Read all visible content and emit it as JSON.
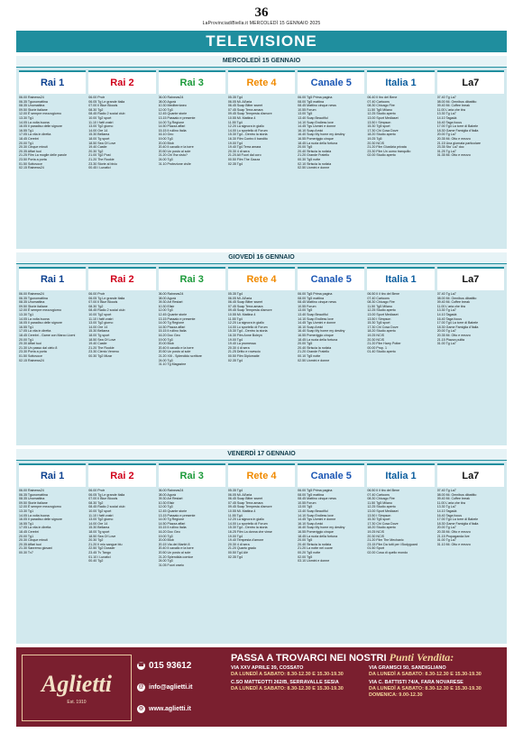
{
  "page_number": "36",
  "paper_line": "LaProvinciadiBiella.it MERCOLEDÌ 15 GENNAIO 2025",
  "section_title": "TELEVISIONE",
  "channels": [
    "Rai 1",
    "Rai 2",
    "Rai 3",
    "Rete 4",
    "Canale 5",
    "Italia 1",
    "La7"
  ],
  "days": [
    {
      "label": "MERCOLEDÌ 15 GENNAIO",
      "columns": [
        [
          "06.00 Rainews24",
          "06.35 Tgunomattina",
          "08.35 Unomattina",
          "09.50 Storie italiane",
          "12.00 È sempre mezzogiorno",
          "13.30 Tg1",
          "14.05 La volta buona",
          "16.05 Il paradiso delle signore",
          "16.55 Tg1",
          "17.05 La vita in diretta",
          "18.45 Cerebri",
          "20.00 Tg1",
          "20.30 Cinque minuti",
          "20.35 Affari tuoi",
          "21.25 Film La moglie delle parole",
          "23.50 Porta a porta",
          "01.50 Sottovoce",
          "02.15 Rainews24"
        ],
        [
          "06.00 Protr",
          "06.05 Tg Le grande Italia",
          "07.00 Il Blue Bloods",
          "08.30 Tg2",
          "08.45 Radio 2 social club",
          "10.00 Tg2 sport",
          "11.10 I fatti vostri",
          "13.00 Tg2 giorno",
          "14.00 Ore 14",
          "15.30 Bellama",
          "18.00 Tg sport",
          "18.50 Sea Of Love",
          "19.40 Castle",
          "20.30 Tg2",
          "21.00 Tg2 Post",
          "21.20 The Rookie",
          "23.30 Storie al bivio",
          "00.45 I Lunatici"
        ],
        [
          "06.00 Rainews24",
          "08.00 Agorà",
          "10.30 Mediterràneo",
          "12.00 Tg3",
          "12.45 Quante storie",
          "13.15 Passato e presente",
          "14.00 Tg Regione",
          "14.50 Piazza affari",
          "15.15 Il rullino Italia",
          "16.10 Geo",
          "19.00 Tg3",
          "20.00 Blob",
          "20.40 Il cavallo e la torre",
          "20.50 Un posto al sole",
          "21.20 Chi l'ha visto?",
          "24.00 Tg3",
          "01.10 Protezione civile"
        ],
        [
          "05.35 Tg4",
          "06.05 Mi. All'aria",
          "06.45 Soap Bitter sweet",
          "07.45 Soap Terra amara",
          "09.45 Soap Tempesta d'amore",
          "10.55 Mi. Mattina 4",
          "11.55 Tg4",
          "12.20 La signora in giallo",
          "14.00 Lo sportello di Forum",
          "15.30 Tg4 - Dentro la storia",
          "16.30 Film Contro il bandito",
          "19.00 Tg4",
          "19.40 Tg4 Terra amara",
          "20.30 4 di sera",
          "21.20 All Fuori dal coro",
          "00.50 Film The Gazza",
          "02.35 Tg4"
        ],
        [
          "06.00 Tg5 Prima pagina",
          "08.00 Tg5 mattina",
          "08.45 Mattino cinque news",
          "10.55 Forum",
          "13.00 Tg5",
          "13.40 Soap Beautiful",
          "14.10 Soap Endless love",
          "14.45 Tgs Uomini e donne",
          "16.10 Soap Amici",
          "16.40 Soap My home my destiny",
          "16.55 Pomeriggio cinque",
          "18.45 La ruota della fortuna",
          "20.00 Tg5",
          "20.40 Striscia la notizia",
          "21.20 Grande Fratello",
          "00.30 Tg5 notte",
          "02.10 Striscia la notizia",
          "02.50 Uomini e donne"
        ],
        [
          "06.40 Il tiro del Bene",
          "07.40 Cartoons",
          "08.30 Chicago Fire",
          "11.50 Tg5 Milano",
          "12.25 Studio aperto",
          "13.00 Sport Mediaset",
          "13.50 I Simpson",
          "15.30 Tg5 sport",
          "17.30 Chi Cosa Dove",
          "18.20 Studio aperto",
          "19.25 Tg5",
          "20.30 NCIS",
          "21.20 Film Giustizia privata",
          "23.30 Film Un uomo tranquillo",
          "02.00 Studio aperto"
        ],
        [
          "07.40 Tg La7",
          "08.00 Mi. Omnibus dibattito",
          "09.40 Mi. Coffee break",
          "11.00 L'aria che tira",
          "13.30 Tg La7",
          "14.10 Tagadà",
          "16.40 Taga focus",
          "17.00 Tg4 La torre di Babele",
          "18.30 Game Famiglia d'Italia",
          "20.00 Tg La7",
          "20.35 Mi. Otto e mezzo",
          "21.15 Una giornata particolare",
          "23.35 Sto' La7 doc",
          "01.25 Tg La7",
          "01.35 Mi. Otto e mezzo"
        ]
      ]
    },
    {
      "label": "GIOVEDÌ 16 GENNAIO",
      "columns": [
        [
          "06.00 Rainews24",
          "06.35 Tgunomattina",
          "08.35 Unomattina",
          "09.50 Storie italiane",
          "12.00 È sempre mezzogiorno",
          "13.30 Tg1",
          "14.05 La volta buona",
          "16.05 Il paradiso delle signore",
          "16.55 Tg1",
          "17.05 La vita in diretta",
          "18.45 Cerebri - Game con Marco Liorni",
          "20.00 Tg1",
          "20.30 Affari tuoi",
          "21.30 Un passo dal cielo 8",
          "23.30 Porta a porta",
          "01.50 Sottovoce",
          "02.15 Rainews24"
        ],
        [
          "06.00 Protr",
          "06.05 Tg Le grande Italia",
          "07.00 Il Blue Bloods",
          "08.30 Tg2",
          "08.45 Radio 2 social club",
          "10.00 Tg2 sport",
          "11.10 I fatti vostri",
          "13.00 Tg2 giorno",
          "14.00 Ore 14",
          "15.30 Bellama",
          "18.00 Tg sport",
          "18.50 Sea Of Love",
          "19.40 Castle",
          "21.20 The Rookie",
          "23.30 Ciento Veneno",
          "00.30 Tg2 Mizar"
        ],
        [
          "06.00 Rainews24",
          "08.00 Agorà",
          "09.30 Art Restart",
          "10.30 Elisir",
          "12.00 Tg3",
          "12.45 Quante storie",
          "13.15 Passato e presente",
          "14.00 Tg Regione",
          "14.50 Piazza affari",
          "15.15 Il rullino Italia",
          "16.20 Doc Geo",
          "19.00 Tg3",
          "20.00 Blob",
          "20.40 Il cavallo e la torre",
          "20.50 Un posto al sole",
          "21.20 XIII - Splendido scrittore",
          "24.00 Tg3",
          "01.10 Tg Magazine"
        ],
        [
          "05.35 Tg4",
          "06.05 Mi. All'aria",
          "06.45 Soap Bitter sweet",
          "07.45 Soap Terra amara",
          "09.45 Soap Tempesta d'amore",
          "10.55 Mi. Mattina 4",
          "11.55 Tg4",
          "12.20 La signora in giallo",
          "14.00 Lo sportello di Forum",
          "15.30 Tg4 - Dentro la storia",
          "16.30 Film Anne Boleyn",
          "19.00 Tg4",
          "19.40 La promessa",
          "20.30 4 di sera",
          "21.25 Dritto e rovescio",
          "00.50 Film Diplomatie",
          "02.35 Tg4"
        ],
        [
          "06.00 Tg5 Prima pagina",
          "08.00 Tg5 mattina",
          "08.45 Mattino cinque news",
          "10.55 Forum",
          "13.00 Tg5",
          "13.40 Soap Beautiful",
          "14.10 Soap Endless love",
          "14.45 Tgs Uomini e donne",
          "16.10 Soap Amici",
          "16.40 Soap My home my destiny",
          "16.55 Pomeriggio cinque",
          "18.45 La ruota della fortuna",
          "20.00 Tg5",
          "20.40 Striscia la notizia",
          "21.20 Grande Fratello",
          "00.10 Tg5 notte",
          "02.50 Uomini e donne"
        ],
        [
          "06.50 Il il tiro del Bene",
          "07.40 Cartoons",
          "08.30 Chicago Fire",
          "11.50 Tg5 Milano",
          "12.25 Studio aperto",
          "13.00 Sport Mediaset",
          "13.50 I Simpson",
          "15.30 Tg5 sport",
          "17.30 Chi Cosa Dove",
          "18.20 Studio aperto",
          "19.25 NCIS",
          "20.30 NCIS",
          "21.20 Film Harry Potter",
          "00.00 Prop. 1",
          "01.40 Studio aperto"
        ],
        [
          "07.40 Tg La7",
          "08.00 Mi. Omnibus dibattito",
          "09.40 Mi. Coffee break",
          "11.00 L'aria che tira",
          "13.30 Tg La7",
          "14.10 Tagadà",
          "16.40 Taga focus",
          "17.00 Tg4 La torre di Babele",
          "18.30 Game Famiglia d'Italia",
          "20.00 Tg La7",
          "20.35 Mi. Otto e mezzo",
          "21.15 Piazza pulita",
          "01.00 Tg La7"
        ]
      ]
    },
    {
      "label": "VENERDÌ 17 GENNAIO",
      "columns": [
        [
          "06.00 Rainews24",
          "06.35 Tgunomattina",
          "08.35 Unomattina",
          "09.50 Storie italiane",
          "12.00 È sempre mezzogiorno",
          "13.30 Tg1",
          "14.05 La volta buona",
          "16.05 Il paradiso delle signore",
          "16.55 Tg1",
          "17.05 La vita in diretta",
          "18.45 Cerebri",
          "20.00 Tg1",
          "20.30 Cinque minuti",
          "20.35 Affari tuoi",
          "21.30 Sanremo giovani",
          "00.30 Tv7"
        ],
        [
          "06.00 Protr",
          "06.05 Tg Le grande Italia",
          "07.00 Il Blue Bloods",
          "08.30 Tg2",
          "08.45 Radio 2 social club",
          "10.00 Tg2 sport",
          "11.10 I fatti vostri",
          "13.00 Tg2 giorno",
          "14.00 Ore 14",
          "15.30 Bellama",
          "18.00 Tg sport",
          "18.50 Sea Of Love",
          "20.30 Tg2",
          "21.20 Il mio sangue blu",
          "22.50 Tg2 Dossier",
          "23.45 Tv Tango",
          "01.10 I Lunatici",
          "00.40 Tg2"
        ],
        [
          "06.00 Rainews24",
          "08.00 Agorà",
          "09.30 Art Restart",
          "10.30 Elisir",
          "12.00 Tg3",
          "12.45 Quante storie",
          "13.15 Passato e presente",
          "14.00 Tg Regione",
          "14.50 Piazza affari",
          "15.15 Il rullino Italia",
          "16.20 Doc Geo",
          "19.00 Tg3",
          "20.00 Blob",
          "20.15 Via dei Martiri 8",
          "20.40 Il cavallo e la torre",
          "20.50 Un posto al sole",
          "21.20 Splendida cornice",
          "24.00 Tg3",
          "01.05 Fuori orario"
        ],
        [
          "05.35 Tg4",
          "06.05 Mi. All'aria",
          "06.45 Soap Bitter sweet",
          "07.45 Soap Terra amara",
          "09.45 Soap Tempesta d'amore",
          "10.55 Mi. Mattina 4",
          "11.55 Tg4",
          "12.20 La signora in giallo",
          "14.00 Lo sportello di Forum",
          "15.30 Tg4 - Dentro la storia",
          "16.25 Film La donna che vinse",
          "19.00 Tg4",
          "19.40 Tempesta d'amore",
          "20.30 4 di sera",
          "21.20 Quarto grado",
          "00.50 Tg4 Alè",
          "02.35 Tg4"
        ],
        [
          "06.00 Tg5 Prima pagina",
          "08.00 Tg5 mattina",
          "08.45 Mattino cinque news",
          "10.55 Forum",
          "13.00 Tg5",
          "13.40 Soap Beautiful",
          "14.10 Soap Endless love",
          "14.45 Tgs Uomini e donne",
          "16.10 Soap Amici",
          "16.40 Soap My home my destiny",
          "16.55 Pomeriggio cinque",
          "18.45 La ruota della fortuna",
          "20.00 Tg5",
          "20.40 Striscia la notizia",
          "21.20 La notte nel cuore",
          "00.20 Tg5 notte",
          "02.00 Tg5",
          "03.10 Uomini e donne"
        ],
        [
          "06.50 Il il tiro del Bene",
          "07.40 Cartoons",
          "08.30 Chicago Fire",
          "11.50 Tg5 Milano",
          "12.25 Studio aperto",
          "13.00 Sport Mediaset",
          "13.50 I Simpson",
          "15.30 Tg5 sport",
          "17.30 Chi Cosa Dove",
          "18.20 Studio aperto",
          "19.25 NCIS",
          "20.30 NCIS",
          "21.20 Film The Mechanic",
          "23.15 Film Da tutti per i Bodyguard",
          "01.50 Sport",
          "02.00 Cosa di quello mondo"
        ],
        [
          "07.40 Tg La7",
          "08.00 Mi. Omnibus dibattito",
          "09.40 Mi. Coffee break",
          "11.00 L'aria che tira",
          "13.30 Tg La7",
          "14.10 Tagadà",
          "16.40 Taga focus",
          "17.00 Tg4 La torre di Babele",
          "18.30 Game Famiglia d'Italia",
          "20.00 Tg La7",
          "20.35 Mi. Otto e mezzo",
          "21.15 Propaganda live",
          "01.00 Tg La7",
          "01.10 Mi. Otto e mezzo"
        ]
      ]
    }
  ],
  "ad": {
    "brand": "Aglietti",
    "est": "Est. 1910",
    "phone": "015 93612",
    "email": "info@aglietti.it",
    "web": "www.aglietti.it",
    "headline": "PASSA A TROVARCI NEI NOSTRI",
    "headline_accent": "Punti Vendita:",
    "stores": [
      {
        "addr": "VIA XXV APRILE 39, COSSATO",
        "hours": "DA LUNEDÌ A SABATO: 8.30-12.30 E 15.30-19.30"
      },
      {
        "addr": "VIA GRAMSCI 50, SANDIGLIANO",
        "hours": "DA LUNEDÌ A SABATO: 8.30-12.30 E 15.30-19.30"
      },
      {
        "addr": "C.SO MATTEOTTI 262/B, SERRAVALLE SESIA",
        "hours": "DA LUNEDÌ A SABATO: 8.30-12.30 E 15.30-19.30"
      },
      {
        "addr": "VIA C. BATTISTI 74/A, FARA NOVARESE",
        "hours": "DA LUNEDÌ A SABATO: 8.30-12.30 E 15.30-19.30 DOMENICA: 9.00-12.30"
      }
    ]
  },
  "colors": {
    "accent": "#1f8e9e",
    "day_bg": "#d2e9ee",
    "ad_bg": "#7a1f2f"
  }
}
